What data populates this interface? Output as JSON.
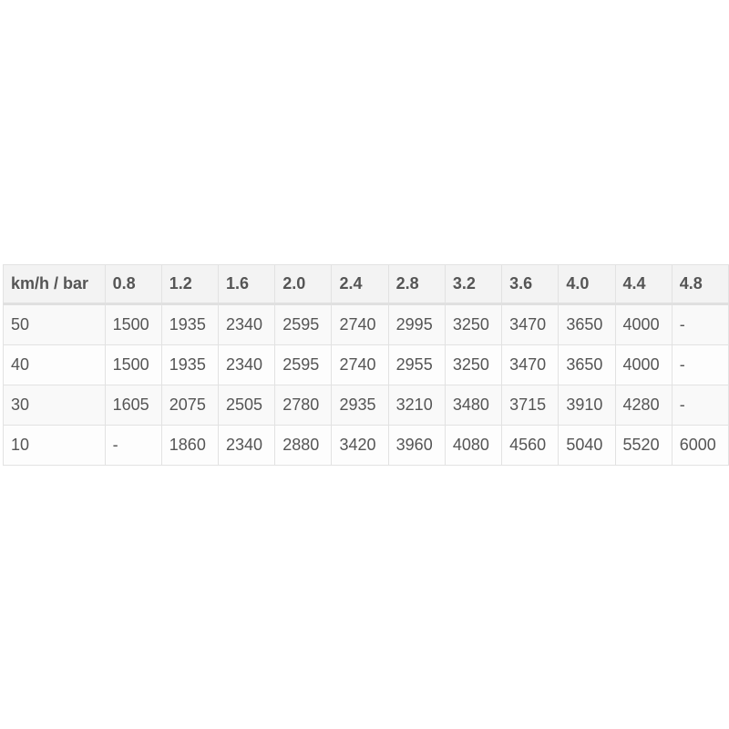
{
  "table": {
    "headers": [
      "km/h / bar",
      "0.8",
      "1.2",
      "1.6",
      "2.0",
      "2.4",
      "2.8",
      "3.2",
      "3.6",
      "4.0",
      "4.4",
      "4.8"
    ],
    "rows": [
      [
        "50",
        "1500",
        "1935",
        "2340",
        "2595",
        "2740",
        "2995",
        "3250",
        "3470",
        "3650",
        "4000",
        "-"
      ],
      [
        "40",
        "1500",
        "1935",
        "2340",
        "2595",
        "2740",
        "2955",
        "3250",
        "3470",
        "3650",
        "4000",
        "-"
      ],
      [
        "30",
        "1605",
        "2075",
        "2505",
        "2780",
        "2935",
        "3210",
        "3480",
        "3715",
        "3910",
        "4280",
        "-"
      ],
      [
        "10",
        "-",
        "1860",
        "2340",
        "2880",
        "3420",
        "3960",
        "4080",
        "4560",
        "5040",
        "5520",
        "6000"
      ]
    ]
  }
}
